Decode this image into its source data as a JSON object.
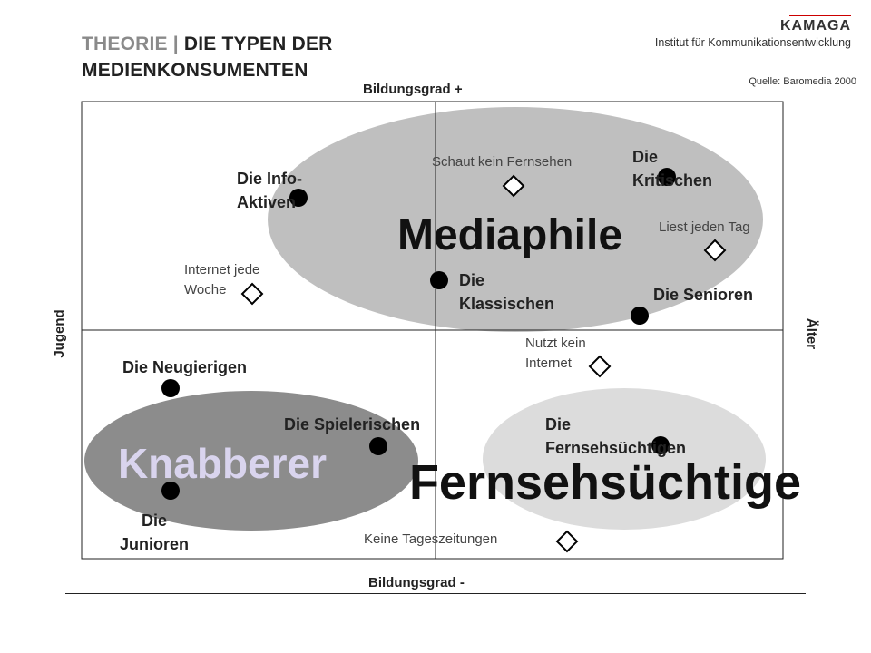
{
  "header": {
    "title_prefix": "THEORIE | ",
    "title_line1": "DIE TYPEN DER",
    "title_line2": "MEDIENKONSUMENTEN",
    "logo_brand": "KAMAGA",
    "logo_subtitle": "Institut für Kommunikationsentwicklung",
    "source": "Quelle:  Baromedia 2000"
  },
  "axes": {
    "top": "Bildungsgrad +",
    "bottom": "Bildungsgrad -",
    "left": "Jugend",
    "right": "Älter"
  },
  "clusters": {
    "mediaphile": "Mediaphile",
    "knabberer": "Knabberer",
    "fernsehsuechtige": "Fernsehsüchtige"
  },
  "segments": {
    "info_aktiven": "Die Info-\nAktiven",
    "kritischen": "Die\nKritischen",
    "klassischen": "Die\nKlassischen",
    "senioren": "Die Senioren",
    "neugierigen": "Die Neugierigen",
    "spielerischen": "Die Spielerischen",
    "fernsehsuechtigen": "Die\nFernsehsüchtigen",
    "junioren": "Die\nJunioren"
  },
  "characteristics": {
    "schaut_kein_fernsehen": "Schaut kein Fernsehen",
    "liest_jeden_tag": "Liest jeden Tag",
    "internet_jede_woche": "Internet jede\nWoche",
    "nutzt_kein_internet": "Nutzt kein\nInternet",
    "keine_tageszeitungen": "Keine Tageszeitungen"
  },
  "colors": {
    "mediaphile_fill": "#bfbfbf",
    "knabberer_fill": "#8c8c8c",
    "knabberer_text": "#d9d4ee",
    "fernseh_fill": "#dcdcdc",
    "marker": "#000000",
    "accent_red": "#cc0000"
  }
}
